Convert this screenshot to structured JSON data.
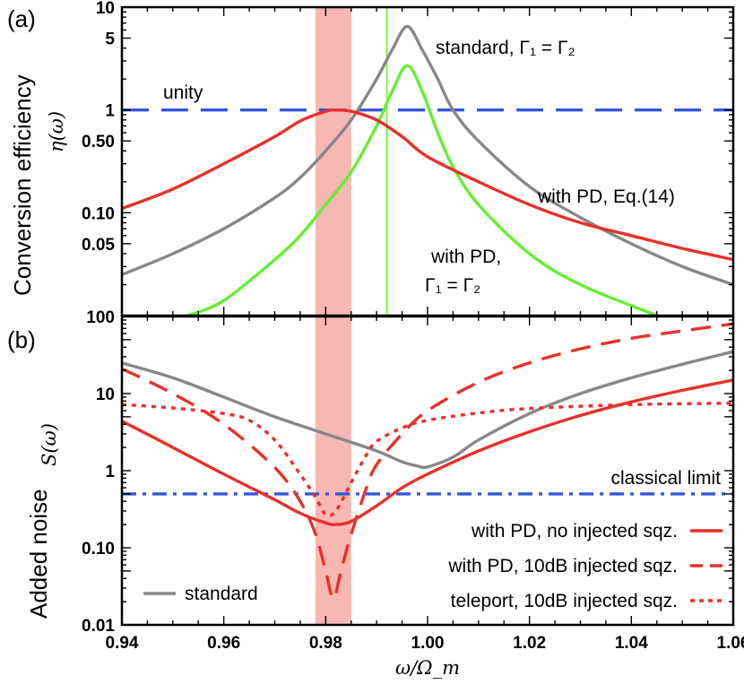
{
  "chart_data": [
    {
      "panel": "(a)",
      "type": "line",
      "ylabel": "Conversion efficiency",
      "ylabel_symbol": "η(ω)",
      "yscale": "log",
      "ylim": [
        0.01,
        10
      ],
      "yticks": [
        {
          "v": 0.05,
          "label": "0.05"
        },
        {
          "v": 0.1,
          "label": "0.10"
        },
        {
          "v": 0.5,
          "label": "0.50"
        },
        {
          "v": 1,
          "label": "1"
        },
        {
          "v": 5,
          "label": "5"
        },
        {
          "v": 10,
          "label": "10"
        }
      ],
      "xlim": [
        0.94,
        1.06
      ],
      "shaded_band": {
        "x": [
          0.978,
          0.985
        ],
        "color": "#f7b7b2"
      },
      "vertical_line": {
        "x": 0.992,
        "color": "#66ee33"
      },
      "annotations": {
        "unity": "unity",
        "standard": "standard, Γ₁ = Γ₂",
        "with_pd_eq": "with PD, Eq.(14)",
        "with_pd_line1": "with PD,",
        "with_pd_line2": "Γ₁ = Γ₂"
      },
      "series": [
        {
          "key": "unity",
          "color": "#3355dd",
          "style": "long-dash",
          "x": [
            0.94,
            1.06
          ],
          "y": [
            1,
            1
          ]
        },
        {
          "key": "standard",
          "color": "#888888",
          "style": "solid",
          "x": [
            0.94,
            0.95,
            0.96,
            0.97,
            0.975,
            0.98,
            0.985,
            0.99,
            0.993,
            0.996,
            0.999,
            1.002,
            1.005,
            1.01,
            1.02,
            1.03,
            1.04,
            1.05,
            1.06
          ],
          "y": [
            0.025,
            0.04,
            0.07,
            0.14,
            0.22,
            0.4,
            0.8,
            2.0,
            3.8,
            6.5,
            3.8,
            2.0,
            1.0,
            0.5,
            0.18,
            0.09,
            0.05,
            0.03,
            0.02
          ]
        },
        {
          "key": "pd_gamma",
          "color": "#66ee33",
          "style": "solid",
          "x": [
            0.953,
            0.96,
            0.97,
            0.975,
            0.98,
            0.985,
            0.99,
            0.993,
            0.996,
            0.999,
            1.002,
            1.005,
            1.01,
            1.02,
            1.03,
            1.045
          ],
          "y": [
            0.01,
            0.014,
            0.035,
            0.06,
            0.12,
            0.25,
            0.7,
            1.5,
            2.7,
            1.5,
            0.6,
            0.28,
            0.12,
            0.04,
            0.02,
            0.01
          ]
        },
        {
          "key": "pd_eq14",
          "color": "#e8302a",
          "style": "solid",
          "x": [
            0.94,
            0.95,
            0.96,
            0.97,
            0.975,
            0.98,
            0.982,
            0.985,
            0.99,
            0.995,
            1.0,
            1.01,
            1.02,
            1.03,
            1.04,
            1.05,
            1.06
          ],
          "y": [
            0.11,
            0.17,
            0.3,
            0.55,
            0.78,
            0.97,
            1.0,
            0.97,
            0.8,
            0.55,
            0.35,
            0.2,
            0.12,
            0.08,
            0.06,
            0.045,
            0.035
          ]
        }
      ]
    },
    {
      "panel": "(b)",
      "type": "line",
      "ylabel": "Added noise",
      "ylabel_symbol": "S(ω)",
      "yscale": "log",
      "ylim": [
        0.01,
        100
      ],
      "yticks": [
        {
          "v": 0.01,
          "label": "0.01"
        },
        {
          "v": 0.1,
          "label": "0.10"
        },
        {
          "v": 1,
          "label": "1"
        },
        {
          "v": 10,
          "label": "10"
        },
        {
          "v": 100,
          "label": "100"
        }
      ],
      "xlim": [
        0.94,
        1.06
      ],
      "xlabel": "ω/Ω_m",
      "xticks": [
        {
          "v": 0.94,
          "label": "0.94"
        },
        {
          "v": 0.96,
          "label": "0.96"
        },
        {
          "v": 0.98,
          "label": "0.98"
        },
        {
          "v": 1.0,
          "label": "1.00"
        },
        {
          "v": 1.02,
          "label": "1.02"
        },
        {
          "v": 1.04,
          "label": "1.04"
        },
        {
          "v": 1.06,
          "label": "1.06"
        }
      ],
      "shaded_band": {
        "x": [
          0.978,
          0.985
        ],
        "color": "#f7b7b2"
      },
      "annotations": {
        "classical_limit": "classical limit"
      },
      "legend": [
        {
          "label": "with PD, no injected sqz.",
          "color": "#e8302a",
          "style": "solid"
        },
        {
          "label": "with PD, 10dB injected sqz.",
          "color": "#e8302a",
          "style": "dash"
        },
        {
          "label": "teleport, 10dB injected sqz.",
          "color": "#e8302a",
          "style": "dot"
        },
        {
          "label": "standard",
          "color": "#888888",
          "style": "solid"
        }
      ],
      "series": [
        {
          "key": "classical",
          "color": "#3355dd",
          "style": "dash-dot",
          "x": [
            0.94,
            1.06
          ],
          "y": [
            0.5,
            0.5
          ]
        },
        {
          "key": "standard",
          "color": "#888888",
          "style": "solid",
          "x": [
            0.94,
            0.95,
            0.96,
            0.97,
            0.98,
            0.99,
            0.995,
            0.998,
            1.0,
            1.005,
            1.01,
            1.02,
            1.03,
            1.04,
            1.05,
            1.06
          ],
          "y": [
            25,
            16,
            9,
            5,
            3,
            1.8,
            1.3,
            1.15,
            1.12,
            1.5,
            2.5,
            5.5,
            10,
            16,
            24,
            35
          ]
        },
        {
          "key": "pd_no_sqz",
          "color": "#e8302a",
          "style": "solid",
          "x": [
            0.94,
            0.95,
            0.96,
            0.97,
            0.975,
            0.98,
            0.982,
            0.985,
            0.99,
            0.995,
            1.0,
            1.01,
            1.02,
            1.03,
            1.04,
            1.05,
            1.06
          ],
          "y": [
            4.4,
            2.0,
            0.9,
            0.42,
            0.28,
            0.21,
            0.2,
            0.22,
            0.35,
            0.6,
            0.9,
            1.8,
            3.2,
            5.2,
            7.8,
            11,
            15
          ]
        },
        {
          "key": "pd_10db",
          "color": "#e8302a",
          "style": "dash",
          "x": [
            0.94,
            0.95,
            0.96,
            0.97,
            0.975,
            0.978,
            0.98,
            0.9815,
            0.983,
            0.985,
            0.988,
            0.99,
            0.995,
            1.0,
            1.01,
            1.02,
            1.03,
            1.04,
            1.05,
            1.06
          ],
          "y": [
            21,
            10,
            4,
            1.1,
            0.4,
            0.15,
            0.05,
            0.022,
            0.05,
            0.15,
            0.6,
            1.2,
            3.0,
            6.0,
            14,
            25,
            38,
            52,
            65,
            80
          ]
        },
        {
          "key": "teleport_10db",
          "color": "#e8302a",
          "style": "dot",
          "x": [
            0.94,
            0.95,
            0.96,
            0.965,
            0.97,
            0.975,
            0.978,
            0.98,
            0.982,
            0.985,
            0.988,
            0.99,
            0.995,
            1.0,
            1.01,
            1.02,
            1.04,
            1.06
          ],
          "y": [
            7.2,
            6.5,
            5.5,
            4.5,
            2.5,
            0.9,
            0.45,
            0.27,
            0.3,
            0.7,
            1.6,
            2.4,
            3.6,
            4.5,
            5.6,
            6.4,
            7.2,
            7.5
          ]
        }
      ]
    }
  ]
}
